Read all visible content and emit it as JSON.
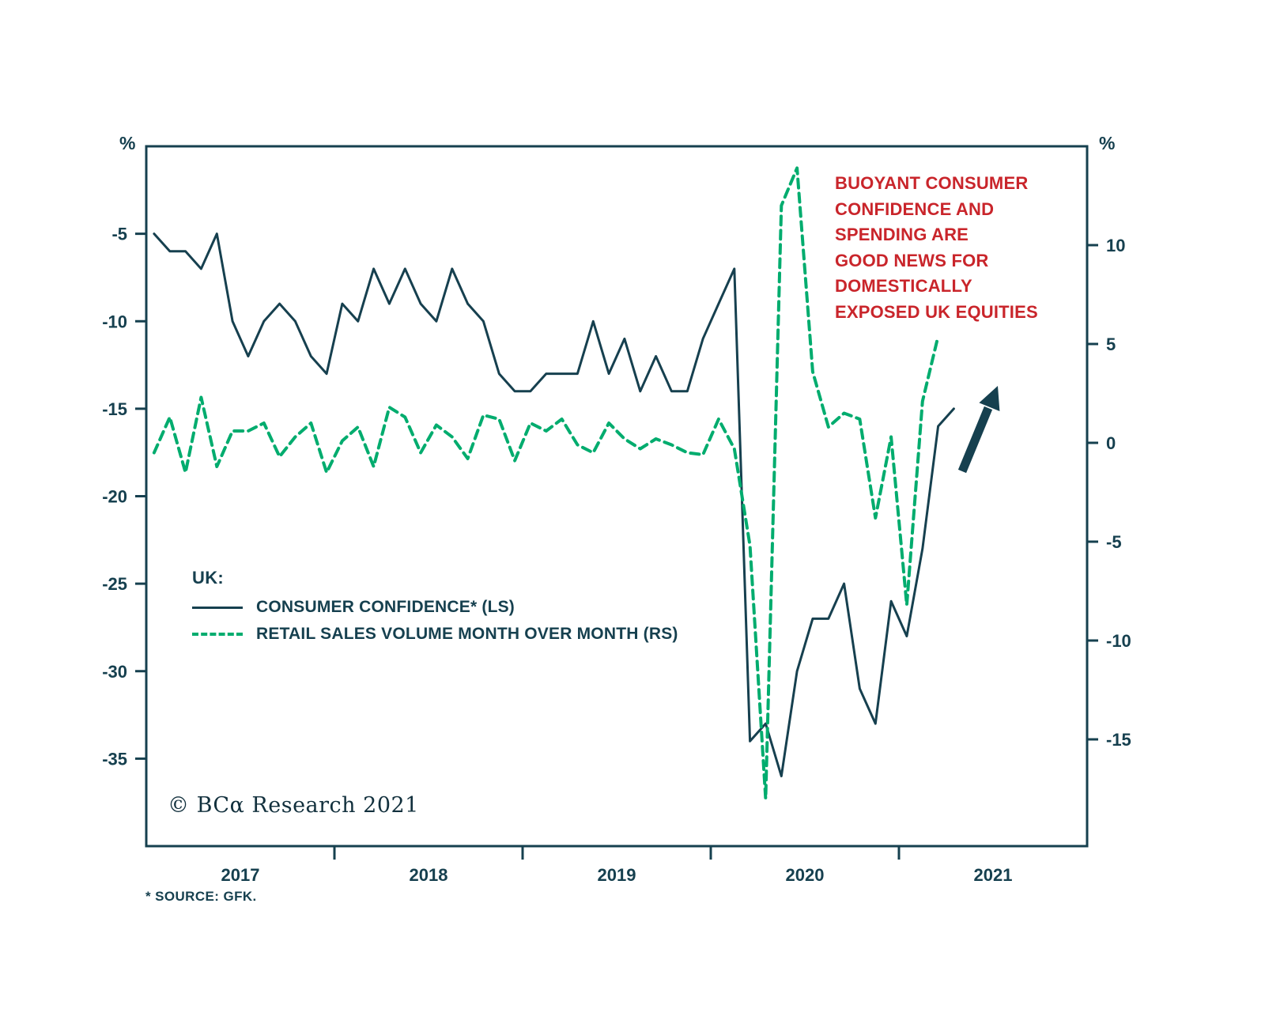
{
  "colors": {
    "line_navy": "#16404F",
    "line_green": "#00AC6E",
    "annotation_red": "#C9252B",
    "background": "#FFFFFF"
  },
  "legend": {
    "title": "UK:"
  },
  "annotation": {
    "text": "BUOYANT CONSUMER\nCONFIDENCE AND\nSPENDING ARE\nGOOD NEWS FOR\nDOMESTICALLY\nEXPOSED UK EQUITIES",
    "arrow": true
  },
  "footer": {
    "copyright": "© BCα Research 2021",
    "source": "* SOURCE: GFK."
  },
  "chart_data": {
    "type": "line",
    "x_unit": "month",
    "x_start": "2017-01",
    "x_tick_labels": [
      "2017",
      "2018",
      "2019",
      "2020",
      "2021"
    ],
    "grid": false,
    "legend_position": "inside-left-middle",
    "left_axis": {
      "label": "%",
      "ticks": [
        -5,
        -10,
        -15,
        -20,
        -25,
        -30,
        -35
      ],
      "range": [
        -40,
        0
      ]
    },
    "right_axis": {
      "label": "%",
      "ticks": [
        10,
        5,
        0,
        -5,
        -10,
        -15
      ],
      "range": [
        -20.4,
        15
      ]
    },
    "series": [
      {
        "name": "CONSUMER CONFIDENCE* (LS)",
        "axis": "left",
        "line_style": "solid",
        "color_key": "line_navy",
        "months": "2017-01 to 2021-04",
        "values": [
          -5,
          -6,
          -6,
          -7,
          -5,
          -10,
          -12,
          -10,
          -9,
          -10,
          -12,
          -13,
          -9,
          -10,
          -7,
          -9,
          -7,
          -9,
          -10,
          -7,
          -9,
          -10,
          -13,
          -14,
          -14,
          -13,
          -13,
          -13,
          -10,
          -13,
          -11,
          -14,
          -12,
          -14,
          -14,
          -11,
          -9,
          -7,
          -34,
          -33,
          -36,
          -30,
          -27,
          -27,
          -25,
          -31,
          -33,
          -26,
          -28,
          -23,
          -16,
          -15
        ]
      },
      {
        "name": "RETAIL SALES VOLUME MONTH OVER MONTH (RS)",
        "axis": "right",
        "line_style": "dashed",
        "color_key": "line_green",
        "months": "2017-01 to 2021-03",
        "values": [
          -0.5,
          1.3,
          -1.5,
          2.3,
          -1.2,
          0.6,
          0.6,
          1.0,
          -0.7,
          0.3,
          1.0,
          -1.5,
          0.1,
          0.8,
          -1.2,
          1.8,
          1.3,
          -0.5,
          0.9,
          0.3,
          -0.8,
          1.4,
          1.2,
          -0.9,
          1.0,
          0.6,
          1.2,
          -0.1,
          -0.5,
          1.0,
          0.2,
          -0.3,
          0.2,
          -0.1,
          -0.5,
          -0.6,
          1.2,
          -0.3,
          -5.2,
          -18.0,
          12.0,
          13.9,
          3.6,
          0.8,
          1.5,
          1.2,
          -3.8,
          0.3,
          -8.2,
          2.1,
          5.4
        ]
      }
    ]
  }
}
